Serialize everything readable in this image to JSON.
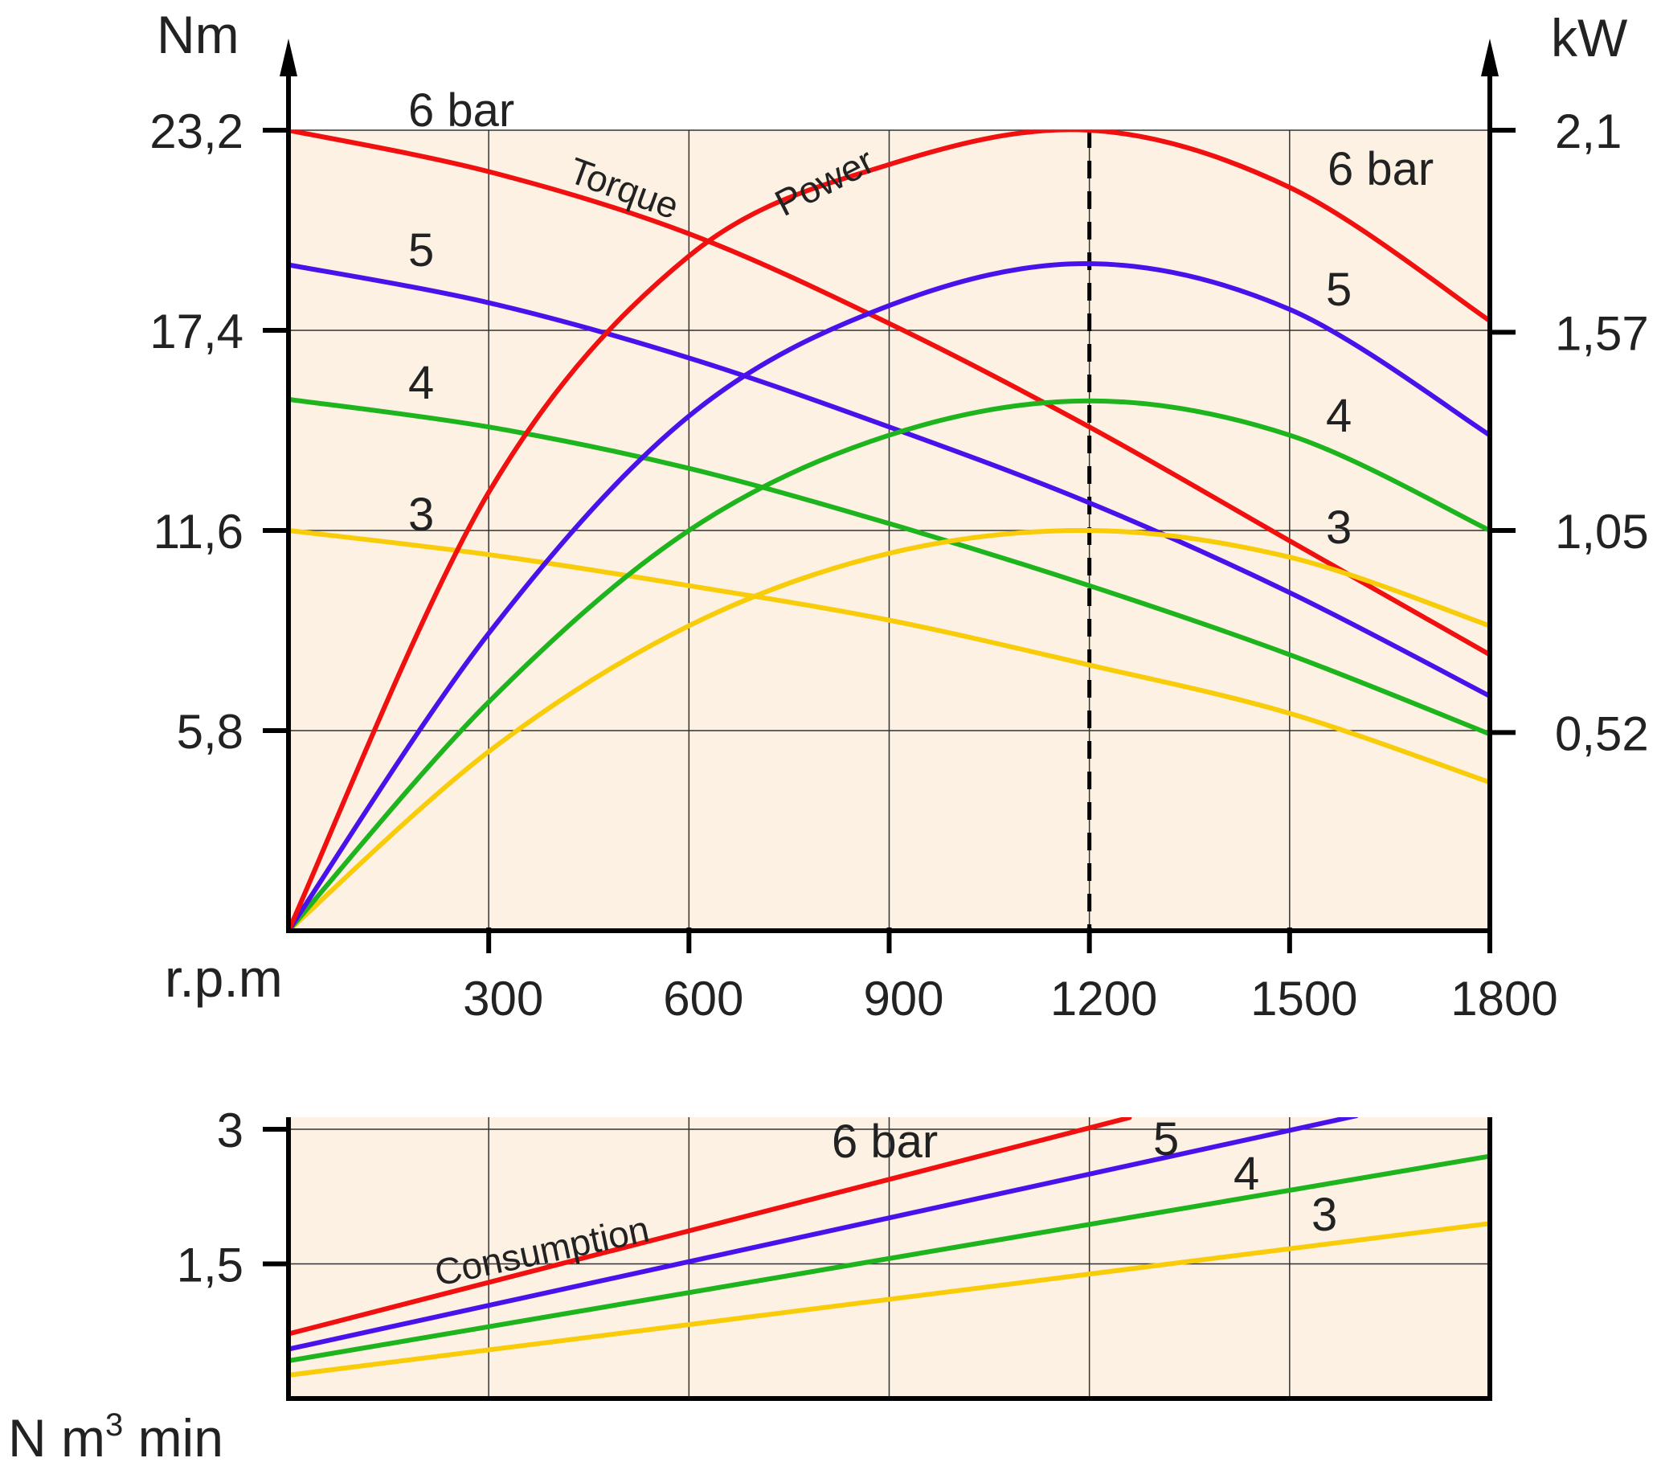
{
  "colors": {
    "plot_background": "#fcf1e2",
    "6 bar": "#f01010",
    "5": "#4a12ea",
    "4": "#1eb41e",
    "3": "#f8cc08"
  },
  "chart_data": [
    {
      "type": "line",
      "x_label": "r.p.m",
      "x_ticks": [
        "300",
        "600",
        "900",
        "1200",
        "1500",
        "1800"
      ],
      "x_tick_values": [
        300,
        600,
        900,
        1200,
        1500,
        1800
      ],
      "xlim": [
        0,
        1800
      ],
      "y_label_left": "Nm",
      "y_ticks_left": [
        "23,2",
        "17,4",
        "11,6",
        "5,8"
      ],
      "y_tick_values_left": [
        23.2,
        17.4,
        11.6,
        5.8
      ],
      "ylim_left": [
        0,
        23.2
      ],
      "y_label_right": "kW",
      "y_ticks_right": [
        "2,1",
        "1,57",
        "1,05",
        "0,52"
      ],
      "y_tick_values_right": [
        2.1,
        1.57,
        1.05,
        0.52
      ],
      "ylim_right": [
        0,
        2.1
      ],
      "grid": true,
      "reference_line_x": 1200,
      "torque_label": "Torque",
      "power_label": "Power",
      "torque_series": [
        {
          "label": "6 bar",
          "color_key": "6 bar",
          "x": [
            0,
            300,
            600,
            900,
            1200,
            1500,
            1800
          ],
          "y": [
            23.2,
            22.0,
            20.2,
            17.6,
            14.6,
            11.3,
            8.0
          ]
        },
        {
          "label": "5",
          "color_key": "5",
          "x": [
            0,
            300,
            600,
            900,
            1200,
            1500,
            1800
          ],
          "y": [
            19.3,
            18.2,
            16.6,
            14.6,
            12.4,
            9.8,
            6.8
          ]
        },
        {
          "label": "4",
          "color_key": "4",
          "x": [
            0,
            300,
            600,
            900,
            1200,
            1500,
            1800
          ],
          "y": [
            15.4,
            14.6,
            13.4,
            11.8,
            10.0,
            8.0,
            5.7
          ]
        },
        {
          "label": "3",
          "color_key": "3",
          "x": [
            0,
            300,
            600,
            900,
            1200,
            1500,
            1800
          ],
          "y": [
            11.6,
            10.9,
            10.0,
            9.0,
            7.7,
            6.3,
            4.3
          ]
        }
      ],
      "power_series": [
        {
          "label": "6 bar",
          "color_key": "6 bar",
          "x": [
            0,
            300,
            600,
            900,
            1200,
            1500,
            1800
          ],
          "y": [
            0,
            1.15,
            1.77,
            2.01,
            2.1,
            1.95,
            1.6
          ]
        },
        {
          "label": "5",
          "color_key": "5",
          "x": [
            0,
            300,
            600,
            900,
            1200,
            1500,
            1800
          ],
          "y": [
            0,
            0.78,
            1.35,
            1.64,
            1.75,
            1.63,
            1.3
          ]
        },
        {
          "label": "4",
          "color_key": "4",
          "x": [
            0,
            300,
            600,
            900,
            1200,
            1500,
            1800
          ],
          "y": [
            0,
            0.6,
            1.05,
            1.3,
            1.39,
            1.3,
            1.05
          ]
        },
        {
          "label": "3",
          "color_key": "3",
          "x": [
            0,
            300,
            600,
            900,
            1200,
            1500,
            1800
          ],
          "y": [
            0,
            0.47,
            0.8,
            0.99,
            1.05,
            0.98,
            0.8
          ]
        }
      ]
    },
    {
      "type": "line",
      "title": "Consumption",
      "y_label": "N m³ min",
      "y_ticks": [
        "3",
        "1,5"
      ],
      "y_tick_values": [
        3,
        1.5
      ],
      "ylim": [
        0,
        3.0
      ],
      "xlim": [
        0,
        1800
      ],
      "grid": true,
      "series": [
        {
          "label": "6 bar",
          "color_key": "6 bar",
          "x": [
            0,
            1260
          ],
          "y": [
            0.72,
            3.13
          ]
        },
        {
          "label": "5",
          "color_key": "5",
          "x": [
            0,
            1600
          ],
          "y": [
            0.55,
            3.15
          ]
        },
        {
          "label": "4",
          "color_key": "4",
          "x": [
            0,
            1800
          ],
          "y": [
            0.42,
            2.7
          ]
        },
        {
          "label": "3",
          "color_key": "3",
          "x": [
            0,
            1800
          ],
          "y": [
            0.26,
            1.95
          ]
        }
      ]
    }
  ]
}
